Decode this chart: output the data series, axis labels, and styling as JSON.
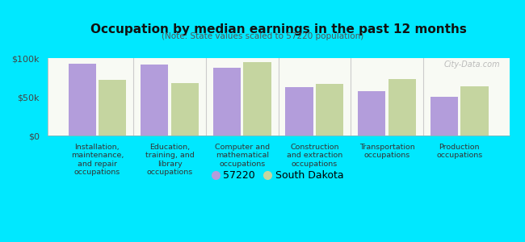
{
  "title": "Occupation by median earnings in the past 12 months",
  "subtitle": "(Note: State values scaled to 57220 population)",
  "background_color": "#00e8ff",
  "plot_bg_top": "#dce8d0",
  "plot_bg_bottom": "#f5f8ee",
  "categories": [
    "Installation,\nmaintenance,\nand repair\noccupations",
    "Education,\ntraining, and\nlibrary\noccupations",
    "Computer and\nmathematical\noccupations",
    "Construction\nand extraction\noccupations",
    "Transportation\noccupations",
    "Production\noccupations"
  ],
  "values_57220": [
    93000,
    92000,
    87000,
    62000,
    57000,
    50000
  ],
  "values_sd": [
    72000,
    68000,
    95000,
    67000,
    73000,
    64000
  ],
  "color_57220": "#b39ddb",
  "color_sd": "#c5d5a0",
  "ylim": [
    0,
    100000
  ],
  "yticks": [
    0,
    50000,
    100000
  ],
  "ytick_labels": [
    "$0",
    "$50k",
    "$100k"
  ],
  "legend_57220": "57220",
  "legend_sd": "South Dakota",
  "watermark": "City-Data.com",
  "bar_width": 0.38,
  "bar_gap": 0.04
}
